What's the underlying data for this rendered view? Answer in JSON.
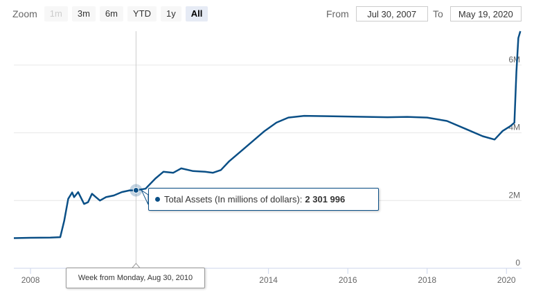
{
  "zoom": {
    "label": "Zoom",
    "buttons": [
      {
        "label": "1m",
        "state": "disabled"
      },
      {
        "label": "3m",
        "state": "normal"
      },
      {
        "label": "6m",
        "state": "normal"
      },
      {
        "label": "YTD",
        "state": "normal"
      },
      {
        "label": "1y",
        "state": "normal"
      },
      {
        "label": "All",
        "state": "active"
      }
    ]
  },
  "range": {
    "from_label": "From",
    "from_value": "Jul 30, 2007",
    "to_label": "To",
    "to_value": "May 19, 2020"
  },
  "tooltip": {
    "series_label": "Total Assets (In millions of dollars):",
    "value": "2 301 996",
    "x_label": "Week from Monday, Aug 30, 2010"
  },
  "colors": {
    "series": "#0a4f86",
    "grid": "#e6e6e6",
    "crosshair": "#cccccc"
  },
  "chart_data": {
    "type": "line",
    "title": "",
    "xlabel": "",
    "ylabel": "",
    "xlim": [
      2007.58,
      2020.38
    ],
    "ylim": [
      0,
      7000000
    ],
    "y_ticks": [
      0,
      2000000,
      4000000,
      6000000
    ],
    "y_tick_labels": [
      "0",
      "2M",
      "4M",
      "6M"
    ],
    "x_ticks": [
      2008,
      2014,
      2016,
      2018,
      2020
    ],
    "x_tick_labels": [
      "2008",
      "2014",
      "2016",
      "2018",
      "2020"
    ],
    "grid": true,
    "crosshair_x": 2010.66,
    "series": [
      {
        "name": "Total Assets (In millions of dollars)",
        "x": [
          2007.58,
          2008.0,
          2008.5,
          2008.75,
          2008.85,
          2008.95,
          2009.05,
          2009.1,
          2009.2,
          2009.35,
          2009.45,
          2009.55,
          2009.65,
          2009.75,
          2009.9,
          2010.1,
          2010.3,
          2010.5,
          2010.66,
          2010.9,
          2011.15,
          2011.35,
          2011.6,
          2011.8,
          2012.1,
          2012.4,
          2012.6,
          2012.8,
          2013.0,
          2013.3,
          2013.6,
          2013.9,
          2014.2,
          2014.5,
          2014.9,
          2015.5,
          2016.0,
          2016.5,
          2017.0,
          2017.5,
          2018.0,
          2018.5,
          2019.0,
          2019.4,
          2019.7,
          2019.9,
          2020.1,
          2020.2,
          2020.25,
          2020.3,
          2020.35
        ],
        "y": [
          890000,
          900000,
          905000,
          920000,
          1400000,
          2050000,
          2240000,
          2100000,
          2250000,
          1900000,
          1950000,
          2200000,
          2100000,
          2000000,
          2100000,
          2150000,
          2250000,
          2300000,
          2301996,
          2350000,
          2650000,
          2850000,
          2820000,
          2950000,
          2870000,
          2850000,
          2820000,
          2900000,
          3150000,
          3450000,
          3750000,
          4050000,
          4300000,
          4450000,
          4500000,
          4490000,
          4480000,
          4470000,
          4460000,
          4470000,
          4450000,
          4350000,
          4100000,
          3900000,
          3800000,
          4050000,
          4200000,
          4300000,
          5800000,
          6800000,
          7000000
        ]
      }
    ]
  }
}
